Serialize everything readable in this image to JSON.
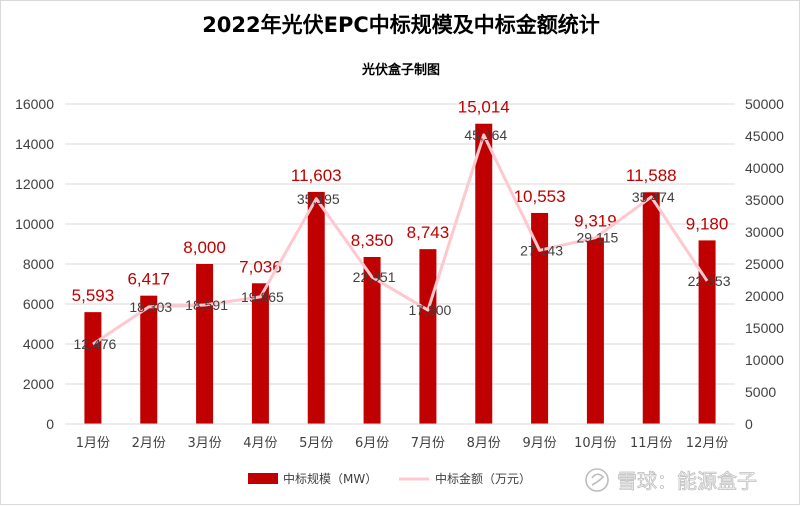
{
  "colors": {
    "bar": "#c00000",
    "line": "#ffc7ce",
    "grid": "#d9d9d9",
    "text": "#404040"
  },
  "watermark": {
    "icon": "snowball-logo-icon",
    "text": "雪球：能源盒子"
  },
  "chart_data": {
    "type": "bar",
    "title": "2022年光伏EPC中标规模及中标金额统计",
    "subtitle": "光伏盒子制图",
    "categories": [
      "1月份",
      "2月份",
      "3月份",
      "4月份",
      "5月份",
      "6月份",
      "7月份",
      "8月份",
      "9月份",
      "10月份",
      "11月份",
      "12月份"
    ],
    "series": [
      {
        "name": "中标规模（MW）",
        "type": "bar",
        "axis": "left",
        "values": [
          5593,
          6417,
          8000,
          7036,
          11603,
          8350,
          8743,
          15014,
          10553,
          9319,
          11588,
          9180
        ],
        "labels": [
          "5,593",
          "6,417",
          "8,000",
          "7,036",
          "11,603",
          "8,350",
          "8,743",
          "15,014",
          "10,553",
          "9,319",
          "11,588",
          "9,180"
        ]
      },
      {
        "name": "中标金额（万元）",
        "type": "line",
        "axis": "right",
        "values": [
          12476,
          18303,
          18591,
          19865,
          35195,
          22951,
          17800,
          45164,
          27143,
          29115,
          35474,
          22353
        ],
        "labels": [
          "12,476",
          "18,303",
          "18,591",
          "19,865",
          "35,195",
          "22,951",
          "17,800",
          "45,164",
          "27,143",
          "29,115",
          "35,474",
          "22,353"
        ]
      }
    ],
    "y_left": {
      "min": 0,
      "max": 16000,
      "ticks": [
        "0",
        "2000",
        "4000",
        "6000",
        "8000",
        "10000",
        "12000",
        "14000",
        "16000"
      ]
    },
    "y_right": {
      "min": 0,
      "max": 50000,
      "ticks": [
        "0",
        "5000",
        "10000",
        "15000",
        "20000",
        "25000",
        "30000",
        "35000",
        "40000",
        "45000",
        "50000"
      ]
    },
    "grid": true,
    "legend_position": "bottom"
  }
}
